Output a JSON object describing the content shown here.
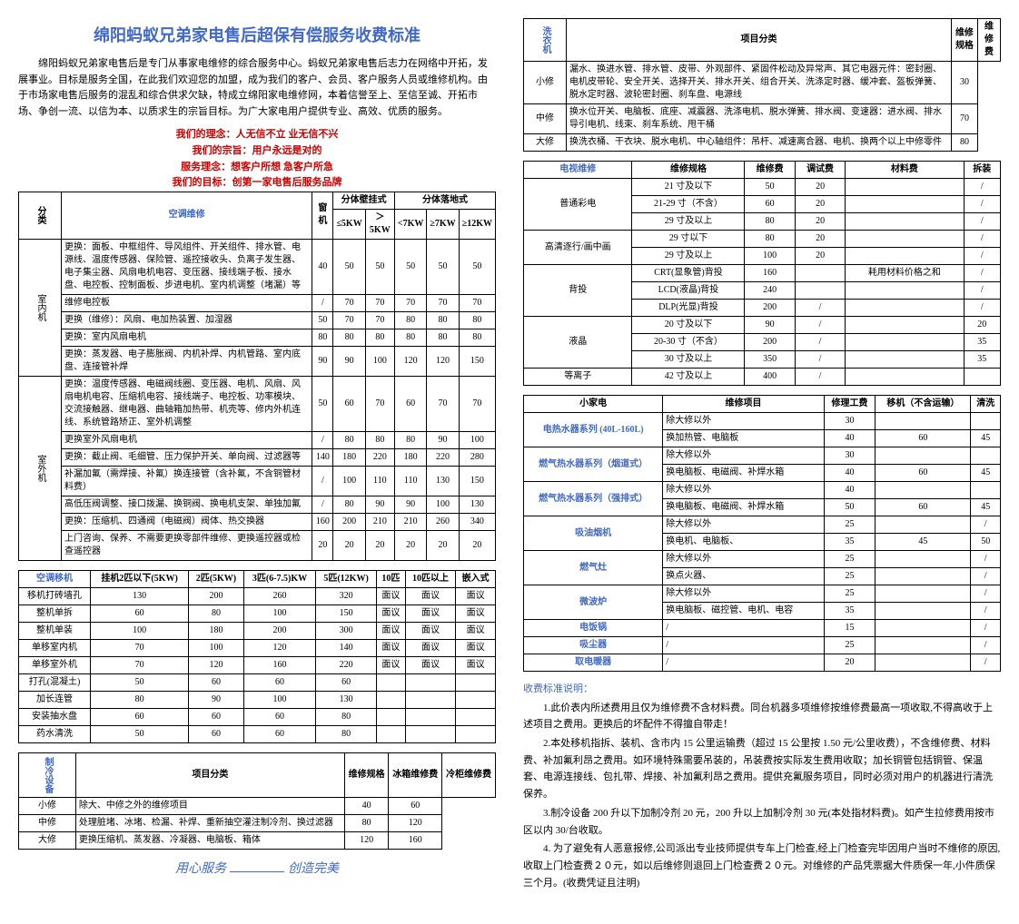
{
  "title": "绵阳蚂蚁兄弟家电售后超保有偿服务收费标准",
  "intro": "绵阳蚂蚁兄弟家电售后是专门从事家电维修的综合服务中心。蚂蚁兄弟家电售后志力在网络中开拓，发展事业。目标是服务全国，在此我们欢迎您的加盟，成为我们的客户、会员、客户服务人员或维修机构。由于市场家电售后服务的混乱和综合供求欠缺，特成立绵阳家电维修网，本着信誉至上、至信至诚、开拓市场、争创一流、以信为本、以质求生的宗旨目标。为广大家电用户提供专业、高效、优质的服务。",
  "slogans": {
    "line1": "我们的理念：人无信不立 业无信不兴",
    "line2": "我们的宗旨：用户永远是对的",
    "line3": "服务理念：想客户所想 急客户所急",
    "line4": "我们的目标：创第一家电售后服务品牌"
  },
  "ac_repair": {
    "title": "空调维修",
    "col_g1": "分体壁挂式",
    "col_g2": "分体落地式",
    "sub_cols": [
      "窗机",
      "≤5KW",
      "＞5KW",
      "<7KW",
      "≥7KW",
      "≥12KW"
    ],
    "cat1": "室内机",
    "cat2": "室外机",
    "rows": [
      {
        "label": "更换：面板、中框组件、导风组件、开关组件、排水管、电源线、温度传感器、保险管、遥控接收头、负离子发生器、电子集尘器、风扇电机电容、变压器、接线端子板、接水盘、电控板、控制面板、步进电机、室内机调整（堵漏）等",
        "v": [
          "40",
          "50",
          "50",
          "50",
          "50",
          "50"
        ]
      },
      {
        "label": "维修电控板",
        "v": [
          "/",
          "70",
          "70",
          "70",
          "70",
          "70"
        ]
      },
      {
        "label": "更换（维修）：风扇、电加热装置、加湿器",
        "v": [
          "50",
          "70",
          "70",
          "80",
          "80",
          "80"
        ]
      },
      {
        "label": "更换：室内风扇电机",
        "v": [
          "80",
          "80",
          "80",
          "80",
          "80",
          "80"
        ]
      },
      {
        "label": "更换：蒸发器、电子膨胀阀、内机补焊、内机管路、室内底盘、连接管补焊",
        "v": [
          "90",
          "90",
          "100",
          "120",
          "120",
          "150"
        ]
      },
      {
        "label": "更换：温度传感器、电磁阀线圈、变压器、电机、风扇、风扇电机电容、压缩机电容、接线端子、电控板、功率模块、交流接触器、继电器、曲轴箱加热带、机壳等、修内外机连线、系统管路矫正、室外机调整",
        "v": [
          "50",
          "60",
          "70",
          "60",
          "70",
          "70"
        ]
      },
      {
        "label": "更换室外风扇电机",
        "v": [
          "/",
          "80",
          "80",
          "80",
          "90",
          "100"
        ]
      },
      {
        "label": "更换：截止阀、毛细管、压力保护开关、单向阀、过滤器等",
        "v": [
          "140",
          "180",
          "220",
          "180",
          "220",
          "280"
        ]
      },
      {
        "label": "补漏加氟（需焊接、补氟）换连接管（含补氟，不含铜管材料费）",
        "v": [
          "/",
          "100",
          "110",
          "110",
          "130",
          "150"
        ]
      },
      {
        "label": "高低压阀调整、接口拨漏、换铜阀、换电机支架、单独加氟",
        "v": [
          "/",
          "80",
          "90",
          "90",
          "100",
          "130"
        ]
      },
      {
        "label": "更换：压缩机、四通阀（电磁阀）阀体、热交换器",
        "v": [
          "160",
          "200",
          "210",
          "210",
          "260",
          "340"
        ]
      },
      {
        "label": "上门咨询、保养、不需要更换零部件维修、更换遥控器或检查遥控器",
        "v": [
          "20",
          "20",
          "20",
          "20",
          "20",
          "20"
        ]
      }
    ]
  },
  "ac_move": {
    "title": "空调移机",
    "cols": [
      "挂机2匹以下(5KW)",
      "2匹(5KW)",
      "3匹(6-7.5)KW",
      "5匹(12KW)",
      "10匹",
      "10匹以上",
      "嵌入式"
    ],
    "rows": [
      {
        "label": "移机打砖墙孔",
        "v": [
          "130",
          "200",
          "260",
          "320",
          "面议",
          "面议",
          "面议"
        ]
      },
      {
        "label": "整机单拆",
        "v": [
          "60",
          "80",
          "100",
          "150",
          "面议",
          "面议",
          "面议"
        ]
      },
      {
        "label": "整机单装",
        "v": [
          "100",
          "180",
          "200",
          "300",
          "面议",
          "面议",
          "面议"
        ]
      },
      {
        "label": "单移室内机",
        "v": [
          "70",
          "100",
          "120",
          "140",
          "面议",
          "面议",
          "面议"
        ]
      },
      {
        "label": "单移室外机",
        "v": [
          "70",
          "120",
          "160",
          "220",
          "面议",
          "面议",
          "面议"
        ]
      },
      {
        "label": "打孔(混凝土)",
        "v": [
          "50",
          "60",
          "60",
          "60",
          "",
          "",
          ""
        ]
      },
      {
        "label": "加长连管",
        "v": [
          "80",
          "90",
          "100",
          "130",
          "",
          "",
          ""
        ]
      },
      {
        "label": "安装抽水盘",
        "v": [
          "60",
          "60",
          "60",
          "80",
          "",
          "",
          ""
        ]
      },
      {
        "label": "药水清洗",
        "v": [
          "50",
          "60",
          "60",
          "80",
          "",
          "",
          ""
        ]
      }
    ]
  },
  "fridge": {
    "title": "制冷设备",
    "cols": [
      "项目分类",
      "维修规格",
      "冰箱维修费",
      "冷柜维修费"
    ],
    "rows": [
      {
        "c": [
          "小修",
          "除大、中修之外的维修项目",
          "40",
          "60"
        ]
      },
      {
        "c": [
          "中修",
          "处理脏堵、冰堵、检漏、补焊、重新抽空灌注制冷剂、换过滤器",
          "80",
          "120"
        ]
      },
      {
        "c": [
          "大修",
          "更换压缩机、蒸发器、冷凝器、电脑板、箱体",
          "120",
          "160"
        ]
      }
    ]
  },
  "footer": {
    "left": "用心服务",
    "right": "创造完美"
  },
  "washer": {
    "title": "洗衣机",
    "cols": [
      "项目分类",
      "维修规格",
      "维修费"
    ],
    "rows": [
      {
        "c": [
          "小修",
          "漏水、换进水管、排水管、皮带、外观部件、紧固件松动及异常声、其它电器元件：密封圈、电机皮带轮、安全开关、选择开关、排水开关、组合开关、洗涤定时器、缓冲套、盔板弹簧、脱水定时器、波轮密封圈、刹车盘、电源线",
          "30"
        ]
      },
      {
        "c": [
          "中修",
          "换水位开关、电脑板、底座、减震器、洗涤电机、脱水弹簧、排水阀、变速器：进水阀、排水导引电机、线束、刹车系统、甩干桶",
          "70"
        ]
      },
      {
        "c": [
          "大修",
          "换洗衣桶、干衣块、脱水电机、中心轴组件：吊杆、减速离合器、电机、换两个以上中修零件",
          "80"
        ]
      }
    ]
  },
  "tv": {
    "title": "电视维修",
    "cols": [
      "",
      "维修规格",
      "维修费",
      "调试费",
      "材料费",
      "拆装"
    ],
    "rows": [
      {
        "cat": "普通彩电",
        "specs": [
          [
            "21 寸及以下",
            "50",
            "20",
            "",
            "/"
          ],
          [
            "21-29 寸（不含）",
            "60",
            "20",
            "",
            "/"
          ],
          [
            "29 寸及以上",
            "80",
            "20",
            "",
            "/"
          ]
        ]
      },
      {
        "cat": "高清逐行/画中画",
        "specs": [
          [
            "29 寸以下",
            "80",
            "20",
            "",
            "/"
          ],
          [
            "29 寸及以上",
            "100",
            "20",
            "",
            "/"
          ]
        ]
      },
      {
        "cat": "背投",
        "specs": [
          [
            "CRT(显象管)背投",
            "160",
            "",
            "耗用材料价格之和",
            "/"
          ],
          [
            "LCD(液晶)背投",
            "240",
            "",
            "",
            "/"
          ],
          [
            "DLP(光显)背投",
            "200",
            "/",
            "",
            "/"
          ]
        ]
      },
      {
        "cat": "液晶",
        "specs": [
          [
            "20 寸及以下",
            "90",
            "/",
            "",
            "20"
          ],
          [
            "20-30 寸（不含）",
            "200",
            "/",
            "",
            "35"
          ],
          [
            "30 寸及以上",
            "350",
            "/",
            "",
            "35"
          ]
        ]
      },
      {
        "cat": "等离子",
        "specs": [
          [
            "42 寸及以上",
            "400",
            "/",
            "",
            ""
          ]
        ]
      }
    ]
  },
  "small": {
    "cols": [
      "小家电",
      "维修项目",
      "修理工费",
      "移机（不含运输）",
      "清洗"
    ],
    "rows": [
      {
        "cat": "电热水器系列 (40L-160L)",
        "items": [
          [
            "除大修以外",
            "30",
            "",
            ""
          ],
          [
            "换加热管、电脑板",
            "40",
            "60",
            "45"
          ]
        ]
      },
      {
        "cat": "燃气热水器系列（烟道式）",
        "items": [
          [
            "除大修以外",
            "30",
            "",
            ""
          ],
          [
            "换电脑板、电磁阀、补焊水箱",
            "40",
            "60",
            "45"
          ]
        ]
      },
      {
        "cat": "燃气热水器系列（强排式）",
        "items": [
          [
            "除大修以外",
            "40",
            "",
            ""
          ],
          [
            "换电脑板、电磁阀、补焊水箱",
            "50",
            "60",
            "45"
          ]
        ]
      },
      {
        "cat": "吸油烟机",
        "items": [
          [
            "除大修以外",
            "25",
            "",
            "/"
          ],
          [
            "换电机、电脑板、",
            "35",
            "45",
            "50"
          ]
        ]
      },
      {
        "cat": "燃气灶",
        "items": [
          [
            "除大修以外",
            "25",
            "",
            "/"
          ],
          [
            "换点火器、",
            "25",
            "",
            "/"
          ]
        ]
      },
      {
        "cat": "微波炉",
        "items": [
          [
            "除大修以外",
            "25",
            "",
            "/"
          ],
          [
            "换电脑板、磁控管、电机、电容",
            "35",
            "",
            "/"
          ]
        ]
      },
      {
        "cat": "电饭锅",
        "items": [
          [
            "/",
            "15",
            "",
            "/"
          ]
        ]
      },
      {
        "cat": "吸尘器",
        "items": [
          [
            "/",
            "25",
            "",
            "/"
          ]
        ]
      },
      {
        "cat": "取电暖器",
        "items": [
          [
            "/",
            "20",
            "",
            "/"
          ]
        ]
      }
    ]
  },
  "notes": {
    "title": "收费标准说明：",
    "p1": "1.此价表内所述费用且仅为维修费不含材料费。同台机器多项维修按维修费最高一项收取,不得高收于上述项目之费用。更换后的坏配件不得擅自带走！",
    "p2": "2.本处移机指拆、装机、含市内 15 公里运输费（超过 15 公里按 1.50 元/公里收费），不含维修费、材料费、补加氟利昂之费用。如环境特殊需要吊装的，吊装费按实际发生费用收取；加长铜管包括铜管、保温套、电源连接线、包扎带、焊接、补加氟利昂之费用。提供充氟服务项目，同时必须对用户的机器进行清洗保养。",
    "p3": "3.制冷设备 200 升以下加制冷剂 20 元，200 升以上加制冷剂 30 元(本处指材料费)。如产生拉修费用按市区以内 30/台收取。",
    "p4": "4. 为了避免有人恶意报修,公司派出专业技师提供专车上门检查,经上门检查完毕因用户当时不维修的原因,收取上门检查费２０元，如以后维修则退回上门检查费２０元。对维修的产品凭票据大件质保一年,小件质保三个月。(收费凭证且注明)"
  }
}
